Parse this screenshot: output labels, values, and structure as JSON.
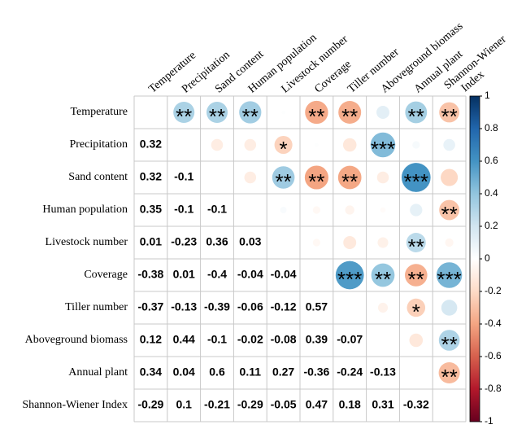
{
  "chart_data": {
    "type": "correlation-matrix",
    "labels": [
      "Temperature",
      "Precipitation",
      "Sand content",
      "Human population",
      "Livestock number",
      "Coverage",
      "Tiller number",
      "Aboveground biomass",
      "Annual plant",
      "Shannon-Wiener Index"
    ],
    "column_labels": [
      "Temperature",
      "Precipitation",
      "Sand content",
      "Human population",
      "Livestock number",
      "Coverage",
      "Tiller number",
      "Aboveground biomass",
      "Annual plant",
      [
        "Shannon-Wiener",
        "Index"
      ]
    ],
    "values": [
      [],
      [
        0.32
      ],
      [
        0.32,
        -0.1
      ],
      [
        0.35,
        -0.1,
        -0.1
      ],
      [
        0.01,
        -0.23,
        0.36,
        0.03
      ],
      [
        -0.38,
        0.01,
        -0.4,
        -0.04,
        -0.04
      ],
      [
        -0.37,
        -0.13,
        -0.39,
        -0.06,
        -0.12,
        0.57
      ],
      [
        0.12,
        0.44,
        -0.1,
        -0.02,
        -0.08,
        0.39,
        -0.07
      ],
      [
        0.34,
        0.04,
        0.6,
        0.11,
        0.27,
        -0.36,
        -0.24,
        -0.13
      ],
      [
        -0.29,
        0.1,
        -0.21,
        -0.29,
        -0.05,
        0.47,
        0.18,
        0.31,
        -0.32
      ]
    ],
    "significance": [
      [
        null,
        "**",
        "**",
        "**",
        null,
        "**",
        "**",
        null,
        "**",
        "**"
      ],
      [
        null,
        null,
        null,
        null,
        "*",
        null,
        null,
        "***",
        null,
        null
      ],
      [
        null,
        null,
        null,
        null,
        "**",
        "**",
        "**",
        null,
        "***",
        null
      ],
      [
        null,
        null,
        null,
        null,
        null,
        null,
        null,
        null,
        null,
        "**"
      ],
      [
        null,
        null,
        null,
        null,
        null,
        null,
        null,
        null,
        "**",
        null
      ],
      [
        null,
        null,
        null,
        null,
        null,
        null,
        "***",
        "**",
        "**",
        "***"
      ],
      [
        null,
        null,
        null,
        null,
        null,
        null,
        null,
        null,
        "*",
        null
      ],
      [
        null,
        null,
        null,
        null,
        null,
        null,
        null,
        null,
        null,
        "**"
      ],
      [
        null,
        null,
        null,
        null,
        null,
        null,
        null,
        null,
        null,
        "**"
      ],
      [
        null,
        null,
        null,
        null,
        null,
        null,
        null,
        null,
        null,
        null
      ]
    ],
    "clim": [
      -1,
      1
    ],
    "cticks": [
      1,
      0.8,
      0.6,
      0.4,
      0.2,
      0,
      -0.2,
      -0.4,
      -0.6,
      -0.8,
      -1
    ],
    "colorscale": [
      "#67001F",
      "#B2182B",
      "#D6604D",
      "#F4A582",
      "#FDDBC7",
      "#FFFFFF",
      "#D1E5F0",
      "#92C5DE",
      "#4393C3",
      "#2166AC",
      "#053061"
    ]
  }
}
